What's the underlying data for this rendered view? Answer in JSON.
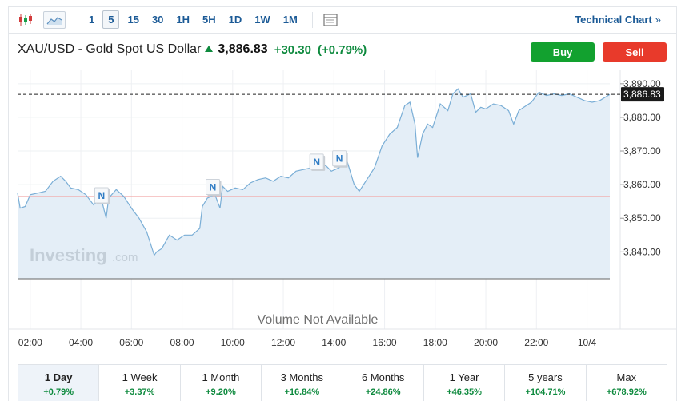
{
  "toolbar": {
    "intervals": [
      "1",
      "5",
      "15",
      "30",
      "1H",
      "5H",
      "1D",
      "1W",
      "1M"
    ],
    "active_interval": "5",
    "technical_chart_label": "Technical Chart",
    "technical_chart_chevron": "»"
  },
  "instrument": {
    "name": "XAU/USD - Gold Spot US Dollar",
    "price": "3,886.83",
    "change": "+30.30",
    "change_pct": "(+0.79%)"
  },
  "actions": {
    "buy_label": "Buy",
    "sell_label": "Sell"
  },
  "colors": {
    "positive": "#0e8a3e",
    "buy": "#12a12f",
    "sell": "#e83a2b",
    "line": "#7aaed6",
    "area": "#e4eef7",
    "link": "#1b5a96",
    "prev_close_line": "#f2a6a6"
  },
  "watermark": {
    "brand": "Investing",
    "suffix": ".com"
  },
  "volume_text": "Volume Not Available",
  "chart_data": {
    "type": "area",
    "x_ticks": [
      "02:00",
      "04:00",
      "06:00",
      "08:00",
      "10:00",
      "12:00",
      "14:00",
      "16:00",
      "18:00",
      "20:00",
      "22:00",
      "10/4"
    ],
    "y_ticks": [
      "3,890.00",
      "3,880.00",
      "3,870.00",
      "3,860.00",
      "3,850.00",
      "3,840.00"
    ],
    "y_tick_values": [
      3890,
      3880,
      3870,
      3860,
      3850,
      3840
    ],
    "ylim": [
      3832,
      3894
    ],
    "xlim": [
      1.5,
      24.9
    ],
    "current_price_label": "3,886.83",
    "current_price": 3886.83,
    "prev_close": 3856.5,
    "news_markers": [
      {
        "label": "N",
        "x": 4.8,
        "y": 3856.7
      },
      {
        "label": "N",
        "x": 9.2,
        "y": 3859.2
      },
      {
        "label": "N",
        "x": 13.3,
        "y": 3866.7
      },
      {
        "label": "N",
        "x": 14.2,
        "y": 3867.7
      }
    ],
    "series": [
      {
        "x": [
          1.5,
          1.6,
          1.8,
          2.0,
          2.3,
          2.6,
          2.9,
          3.2,
          3.4,
          3.6,
          3.9,
          4.2,
          4.5,
          4.8,
          5.0,
          5.1,
          5.4,
          5.7,
          6.0,
          6.3,
          6.6,
          6.9,
          7.0,
          7.2,
          7.5,
          7.8,
          8.1,
          8.4,
          8.7,
          8.8,
          9.0,
          9.3,
          9.5,
          9.6,
          9.8,
          10.1,
          10.4,
          10.7,
          11.0,
          11.3,
          11.6,
          11.9,
          12.2,
          12.5,
          12.8,
          13.1,
          13.4,
          13.7,
          13.9,
          14.2,
          14.5,
          14.8,
          15.0,
          15.3,
          15.6,
          15.9,
          16.2,
          16.5,
          16.8,
          17.0,
          17.2,
          17.3,
          17.5,
          17.7,
          17.9,
          18.2,
          18.5,
          18.7,
          18.9,
          19.1,
          19.4,
          19.6,
          19.8,
          20.0,
          20.3,
          20.6,
          20.9,
          21.1,
          21.3,
          21.5,
          21.8,
          22.1,
          22.4,
          22.7,
          23.0,
          23.3,
          23.6,
          23.9,
          24.2,
          24.5,
          24.9
        ],
        "y": [
          3857.5,
          3853.0,
          3853.5,
          3857.0,
          3857.5,
          3858.0,
          3861.0,
          3862.5,
          3861.0,
          3859.0,
          3858.5,
          3857.0,
          3854.0,
          3856.0,
          3850.0,
          3856.0,
          3858.5,
          3856.5,
          3853.0,
          3850.0,
          3846.0,
          3839.0,
          3840.0,
          3841.0,
          3845.0,
          3843.5,
          3845.0,
          3845.0,
          3847.0,
          3853.5,
          3856.0,
          3857.0,
          3853.0,
          3859.5,
          3858.0,
          3859.0,
          3858.5,
          3860.5,
          3861.5,
          3862.0,
          3861.0,
          3862.5,
          3862.0,
          3864.0,
          3864.5,
          3865.0,
          3866.5,
          3865.5,
          3864.0,
          3865.0,
          3867.5,
          3860.0,
          3858.0,
          3861.5,
          3865.0,
          3871.5,
          3875.0,
          3877.0,
          3883.5,
          3884.5,
          3878.0,
          3868.0,
          3875.0,
          3878.0,
          3877.0,
          3884.0,
          3882.0,
          3887.0,
          3888.5,
          3886.0,
          3887.0,
          3881.5,
          3883.0,
          3882.5,
          3884.0,
          3883.5,
          3882.0,
          3878.0,
          3882.0,
          3883.0,
          3884.5,
          3887.5,
          3886.5,
          3887.0,
          3886.5,
          3887.0,
          3886.0,
          3885.0,
          3884.5,
          3885.0,
          3886.83
        ]
      }
    ]
  },
  "periods": [
    {
      "label": "1 Day",
      "value": "+0.79%",
      "active": true
    },
    {
      "label": "1 Week",
      "value": "+3.37%"
    },
    {
      "label": "1 Month",
      "value": "+9.20%"
    },
    {
      "label": "3 Months",
      "value": "+16.84%"
    },
    {
      "label": "6 Months",
      "value": "+24.86%"
    },
    {
      "label": "1 Year",
      "value": "+46.35%"
    },
    {
      "label": "5 years",
      "value": "+104.71%"
    },
    {
      "label": "Max",
      "value": "+678.92%"
    }
  ]
}
